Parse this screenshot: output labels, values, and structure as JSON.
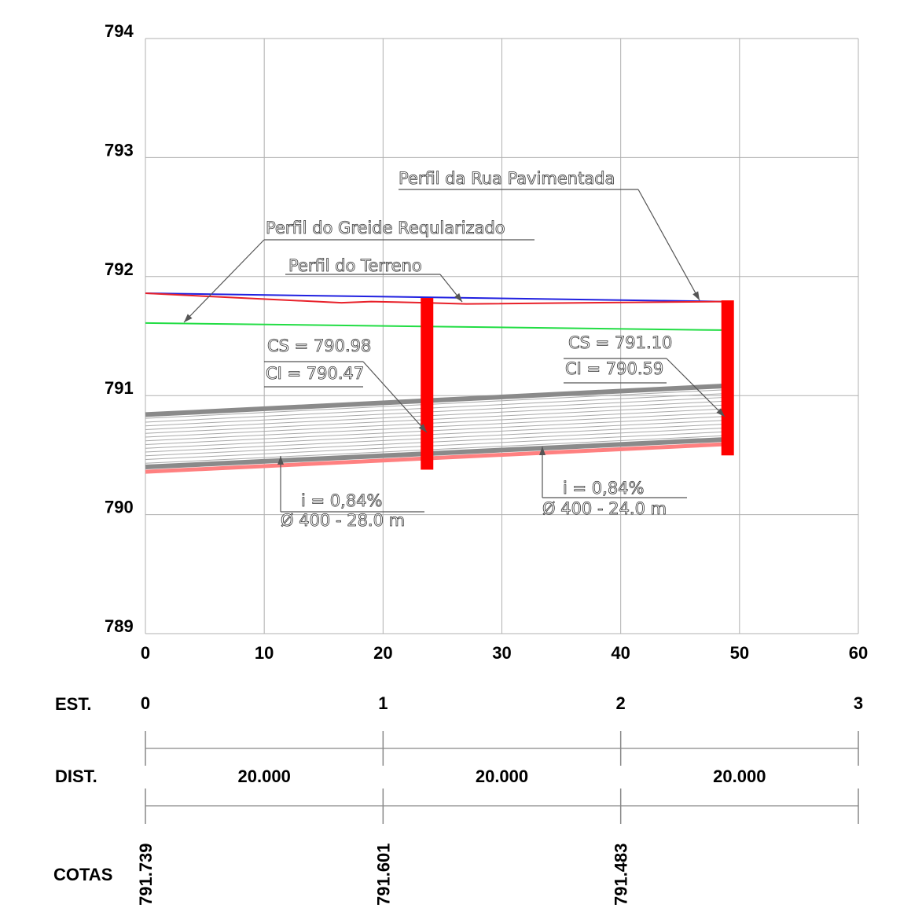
{
  "chart_data": {
    "type": "line",
    "xlim": [
      0,
      60
    ],
    "ylim": [
      789,
      794
    ],
    "x_ticks": [
      "0",
      "10",
      "20",
      "30",
      "40",
      "50",
      "60"
    ],
    "y_ticks": [
      "789",
      "790",
      "791",
      "792",
      "793",
      "794"
    ],
    "grid": true,
    "series": [
      {
        "name": "Perfil da Rua Pavimentada",
        "color": "#2020e0",
        "points": [
          [
            0,
            791.86
          ],
          [
            48.5,
            791.79
          ]
        ]
      },
      {
        "name": "Perfil do Terreno",
        "color": "#e8212a",
        "points": [
          [
            0,
            791.86
          ],
          [
            6,
            791.83
          ],
          [
            16.5,
            791.78
          ],
          [
            19,
            791.79
          ],
          [
            23.5,
            791.78
          ],
          [
            27,
            791.77
          ],
          [
            48.5,
            791.79
          ]
        ]
      },
      {
        "name": "Perfil do Greide Regularizado",
        "color": "#22dd44",
        "points": [
          [
            0,
            791.61
          ],
          [
            48.5,
            791.55
          ]
        ]
      }
    ],
    "pipe": {
      "color": "#888888",
      "invert_color": "#ff8080",
      "top_start": 790.84,
      "top_end": 791.08,
      "bottom_start": 790.4,
      "bottom_end": 790.63,
      "invert_start": 790.36,
      "invert_end": 790.59,
      "x_start": 0,
      "x_end": 48.5
    },
    "manholes": [
      {
        "x": 23.7,
        "top": 791.82,
        "bottom": 790.47,
        "color": "#ff0000"
      },
      {
        "x": 49.0,
        "top": 791.8,
        "bottom": 790.59,
        "color": "#ff0000"
      }
    ],
    "annotations": [
      {
        "key": "rua",
        "text": "Perfil da Rua Pavimentada"
      },
      {
        "key": "greide",
        "text": "Perfil do Greide Reqularizado"
      },
      {
        "key": "terreno",
        "text": "Perfil do Terreno"
      },
      {
        "key": "cs1",
        "text": "CS = 790.98"
      },
      {
        "key": "ci1",
        "text": "CI = 790.47"
      },
      {
        "key": "cs2",
        "text": "CS = 791.10"
      },
      {
        "key": "ci2",
        "text": "CI = 790.59"
      },
      {
        "key": "i1",
        "text": "i = 0,84%"
      },
      {
        "key": "d1",
        "text": "Ø 400 - 28.0 m"
      },
      {
        "key": "i2",
        "text": "i = 0,84%"
      },
      {
        "key": "d2",
        "text": "Ø 400 - 24.0 m"
      }
    ]
  },
  "table": {
    "est_label": "EST.",
    "dist_label": "DIST.",
    "cotas_label": "COTAS",
    "stations": [
      "0",
      "1",
      "2",
      "3"
    ],
    "distances": [
      "20.000",
      "20.000",
      "20.000"
    ],
    "cotas": [
      "791.739",
      "791.601",
      "791.483"
    ]
  }
}
